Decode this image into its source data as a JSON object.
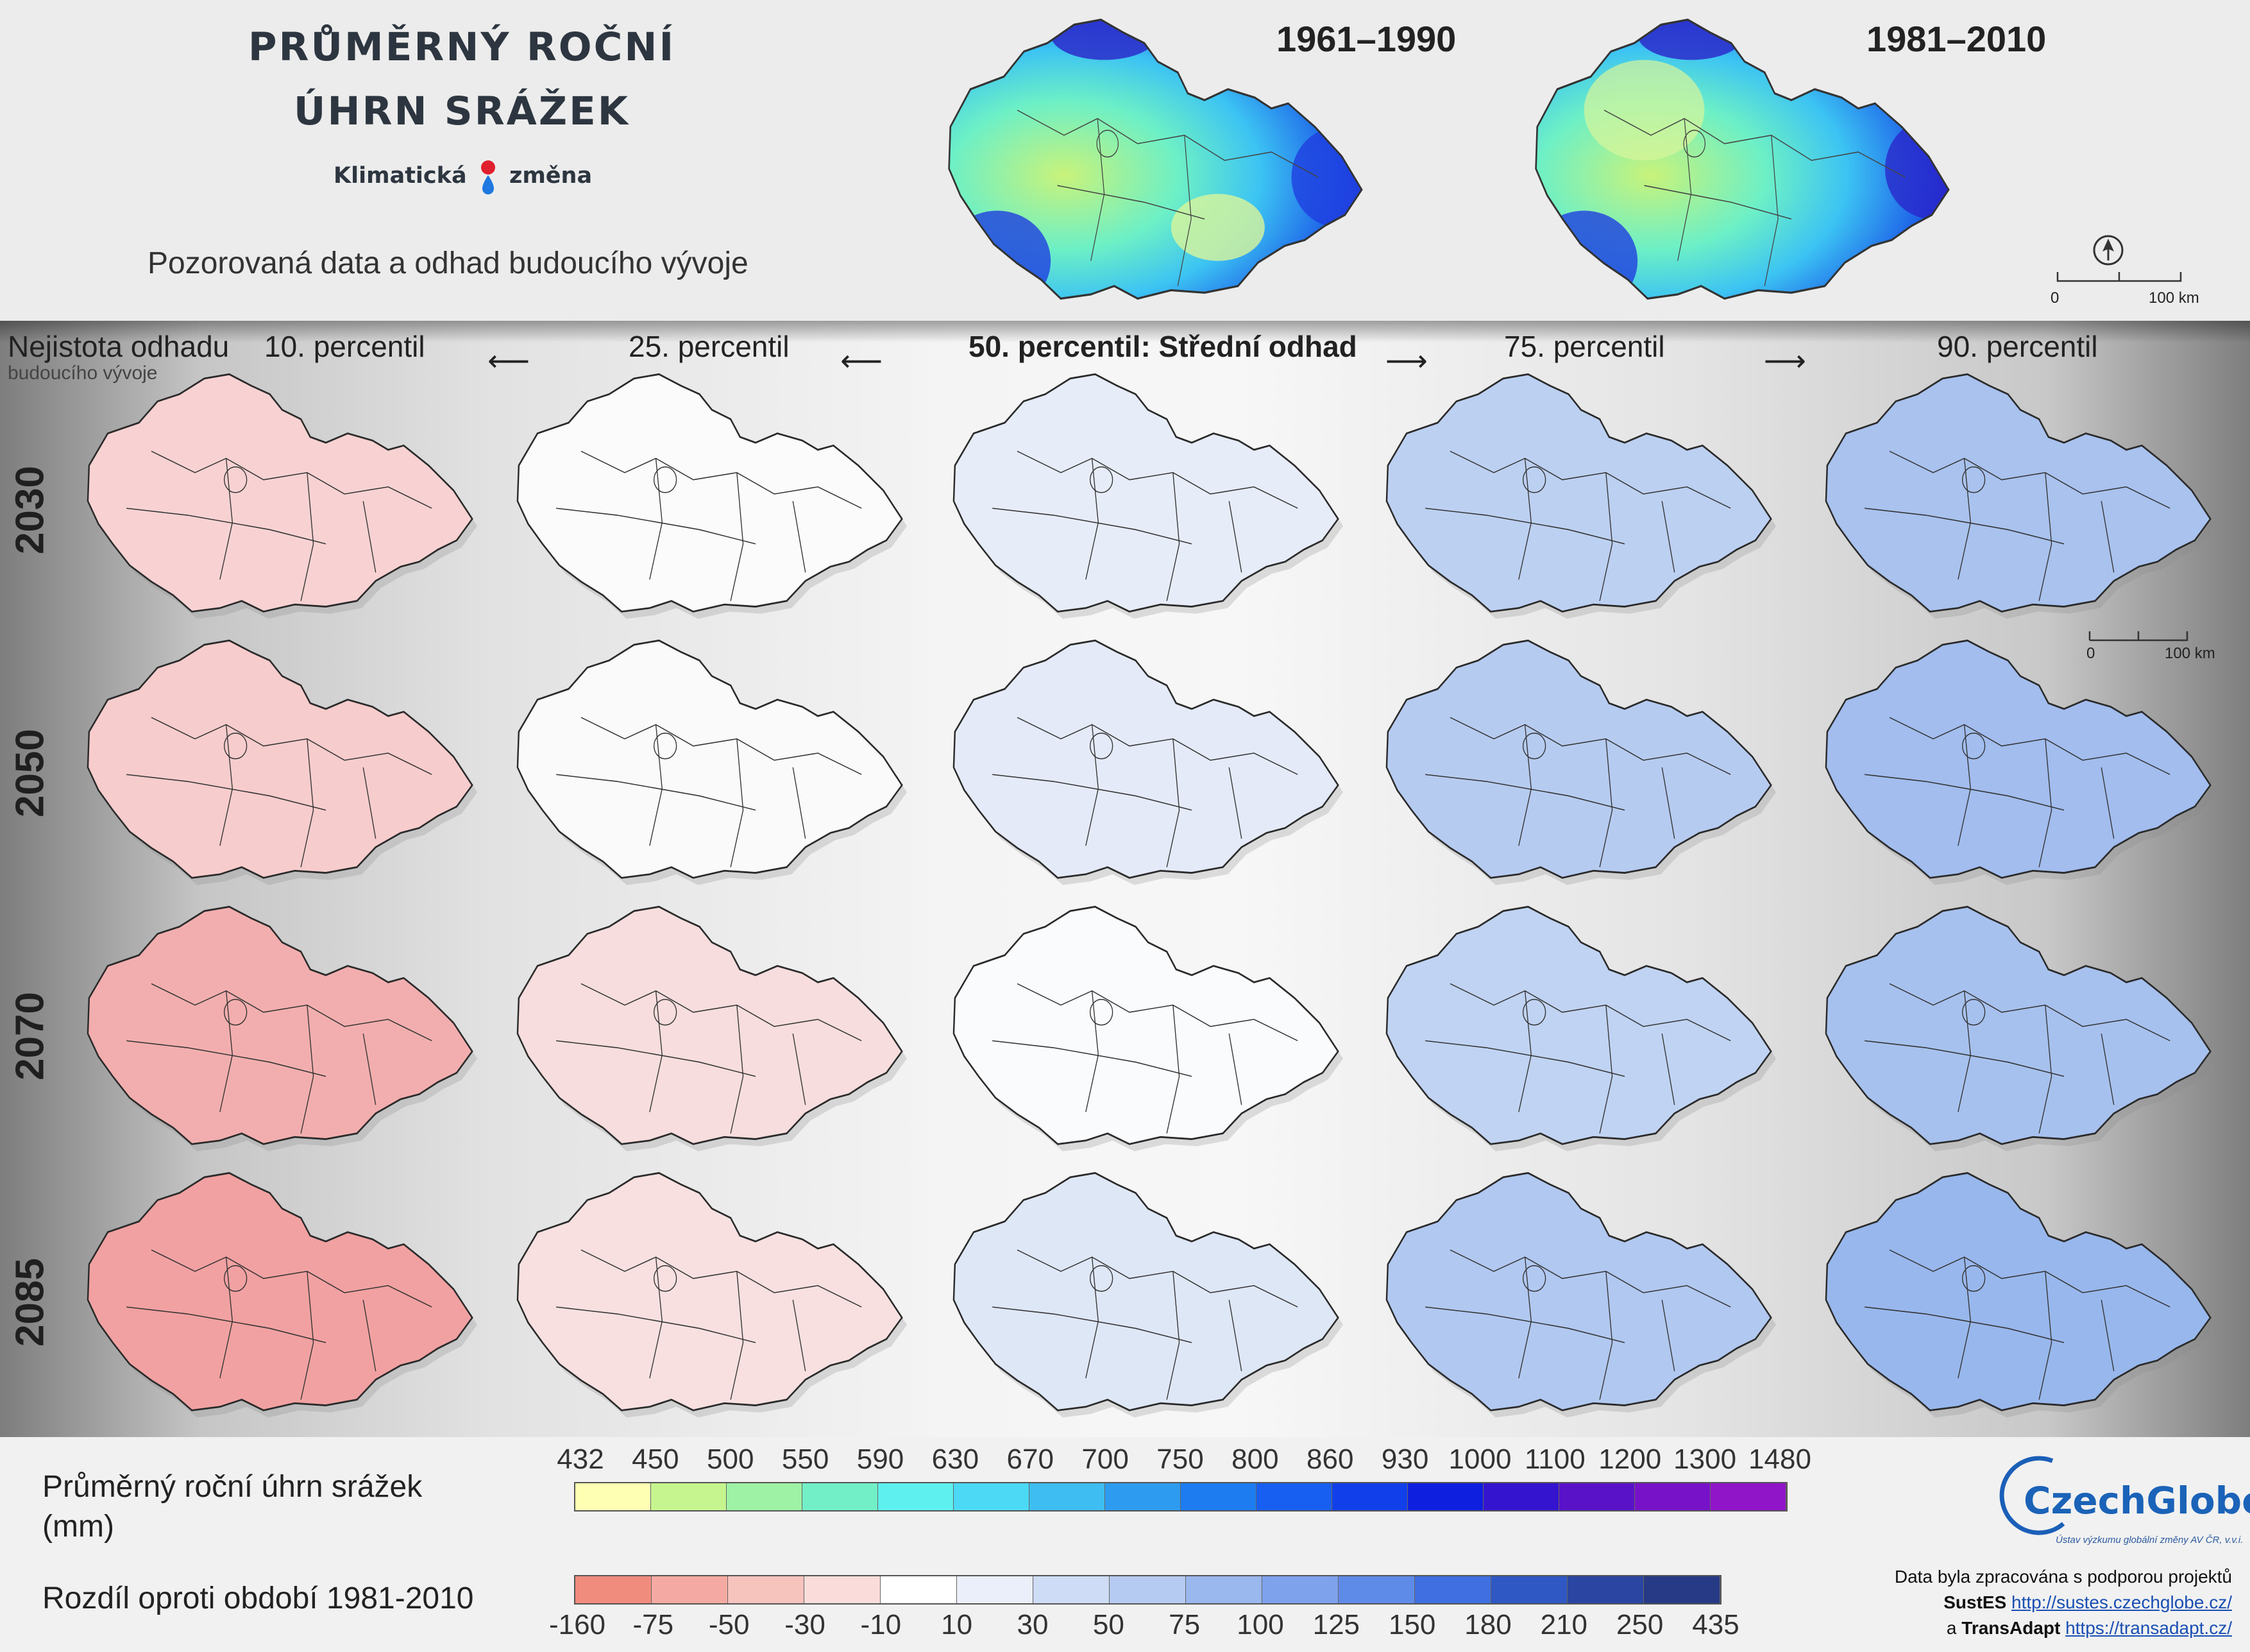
{
  "header": {
    "title_line1": "PRŮMĚRNÝ ROČNÍ",
    "title_line2": "ÚHRN SRÁŽEK",
    "logo_text_left": "Klimatická",
    "logo_text_right": "změna",
    "subtitle": "Pozorovaná data a odhad budoucího vývoje"
  },
  "observed": [
    {
      "label": "1961–1990"
    },
    {
      "label": "1981–2010"
    }
  ],
  "scalebar_top": {
    "zero": "0",
    "end": "100 km"
  },
  "scalebar_grid": {
    "zero": "0",
    "end": "100 km"
  },
  "uncertainty_label": {
    "line1": "Nejistota odhadu",
    "line2": "budoucího vývoje"
  },
  "columns": [
    {
      "label": "10. percentil"
    },
    {
      "label": "25. percentil"
    },
    {
      "label": "50. percentil: Střední odhad"
    },
    {
      "label": "75. percentil"
    },
    {
      "label": "90. percentil"
    }
  ],
  "arrows": {
    "left": "⟵",
    "right": "⟶"
  },
  "rows": [
    {
      "year": "2030",
      "fills": [
        "#f8d2d2",
        "#fbfbfb",
        "#e6ecf8",
        "#bcd0f1",
        "#a9c2ee"
      ]
    },
    {
      "year": "2050",
      "fills": [
        "#f7cccc",
        "#fafafa",
        "#e4eaf8",
        "#b6cbf0",
        "#a2bdee"
      ]
    },
    {
      "year": "2070",
      "fills": [
        "#f2aeae",
        "#f7dddd",
        "#fafbfd",
        "#c0d3f2",
        "#a7c1ee"
      ]
    },
    {
      "year": "2085",
      "fills": [
        "#f1a1a1",
        "#f8e0e0",
        "#dee7f6",
        "#b1c8f0",
        "#98b7ec"
      ]
    }
  ],
  "legend_precip": {
    "title_line1": "Průměrný roční úhrn srážek",
    "title_line2": "(mm)",
    "ticks": [
      "432",
      "450",
      "500",
      "550",
      "590",
      "630",
      "670",
      "700",
      "750",
      "800",
      "860",
      "930",
      "1000",
      "1100",
      "1200",
      "1300",
      "1480"
    ],
    "colors": [
      "#feffb3",
      "#c6f58f",
      "#9df2a5",
      "#73efc7",
      "#5ef0ee",
      "#4cd9f5",
      "#3ebdf2",
      "#2d9cf0",
      "#1c7cf0",
      "#165ff0",
      "#1140ea",
      "#0e1fe0",
      "#3514cf",
      "#5a12c8",
      "#7812c8",
      "#9014c8"
    ]
  },
  "legend_diff": {
    "title": "Rozdíl oproti období 1981-2010",
    "ticks": [
      "-160",
      "-75",
      "-50",
      "-30",
      "-10",
      "10",
      "30",
      "50",
      "75",
      "100",
      "125",
      "150",
      "180",
      "210",
      "250",
      "435"
    ],
    "colors": [
      "#f08c7e",
      "#f4aaa2",
      "#f7c3bd",
      "#fadddb",
      "#ffffff",
      "#eaeff9",
      "#cfdcf5",
      "#b6cbf1",
      "#9ab7ee",
      "#7ea2ec",
      "#5f8be8",
      "#3f6fe0",
      "#2f58c4",
      "#2a46a2",
      "#263a85"
    ]
  },
  "branding": {
    "logo": "CzechGlobe",
    "logo_sub": "Ústav výzkumu globální změny AV ČR, v.v.i.",
    "credit_line1": "Data byla zpracována s podporou projektů",
    "proj1_name": "SustES",
    "proj1_url": "http://sustes.czechglobe.cz/",
    "conj": "a",
    "proj2_name": "TransAdapt",
    "proj2_url": "https://transadapt.cz/"
  }
}
